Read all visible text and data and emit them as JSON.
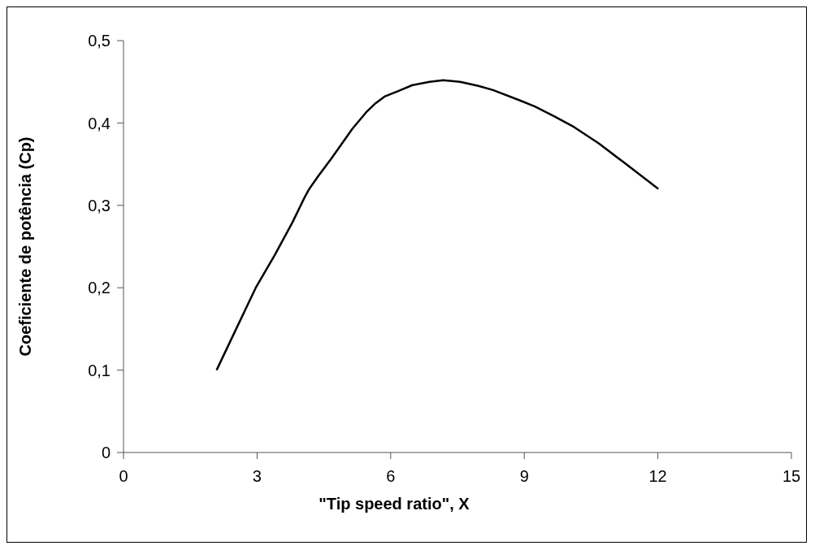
{
  "chart_data": {
    "type": "line",
    "xlabel": "\"Tip speed ratio\", X",
    "ylabel": "Coeficiente de potência (Cp)",
    "xlim": [
      0,
      15
    ],
    "xticks": [
      0,
      3,
      6,
      9,
      12,
      15
    ],
    "ylim": [
      0,
      0.5
    ],
    "yticks": [
      {
        "value": 0,
        "label": "0"
      },
      {
        "value": 0.1,
        "label": "0,1"
      },
      {
        "value": 0.2,
        "label": "0,2"
      },
      {
        "value": 0.3,
        "label": "0,3"
      },
      {
        "value": 0.4,
        "label": "0,4"
      },
      {
        "value": 0.5,
        "label": "0,5"
      }
    ],
    "grid": false,
    "legend": false,
    "marker": "none",
    "line_style": "solid",
    "series": [
      {
        "color": "#000000",
        "x": [
          2.09,
          2.53,
          2.97,
          3.4,
          3.79,
          4.07,
          4.16,
          4.38,
          4.67,
          5.14,
          5.45,
          5.64,
          5.86,
          6.18,
          6.49,
          6.87,
          7.18,
          7.56,
          7.97,
          8.3,
          8.92,
          9.24,
          9.68,
          10.12,
          10.68,
          11.24,
          12.01
        ],
        "values": [
          0.1,
          0.15,
          0.2,
          0.24,
          0.279,
          0.31,
          0.319,
          0.336,
          0.357,
          0.393,
          0.413,
          0.423,
          0.432,
          0.439,
          0.446,
          0.45,
          0.452,
          0.45,
          0.445,
          0.44,
          0.427,
          0.42,
          0.408,
          0.395,
          0.375,
          0.352,
          0.32
        ]
      }
    ]
  }
}
